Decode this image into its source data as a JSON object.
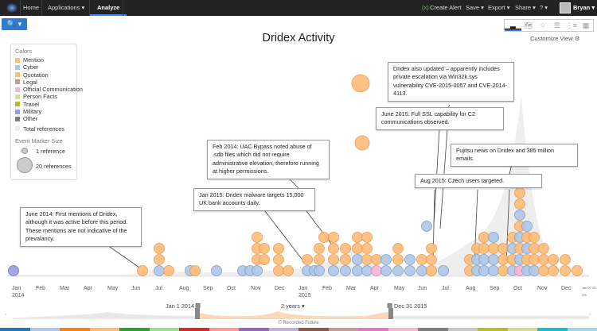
{
  "nav": {
    "home": "Home",
    "applications": "Applications ▾",
    "analyze": "Analyze",
    "create_alert": "Create Alert",
    "save": "Save ▾",
    "export": "Export ▾",
    "share": "Share ▾",
    "help": "? ▾",
    "user": "Bryan ▾"
  },
  "toolbar": {
    "search_label": "🔍 ▾",
    "customize": "Customize View ⚙"
  },
  "title": "Dridex Activity",
  "legend": {
    "colors_heading": "Colors",
    "items": [
      {
        "label": "Mention",
        "color": "#ffbb78"
      },
      {
        "label": "Cyber",
        "color": "#aec7e8"
      },
      {
        "label": "Quotation",
        "color": "#ffbb78"
      },
      {
        "label": "Legal",
        "color": "#c49c94"
      },
      {
        "label": "Official Communication",
        "color": "#f7b6d2"
      },
      {
        "label": "Person Facts",
        "color": "#dbdb8d"
      },
      {
        "label": "Travel",
        "color": "#bcbd22"
      },
      {
        "label": "Military",
        "color": "#9a9ce8"
      },
      {
        "label": "Other",
        "color": "#7f7f7f"
      }
    ],
    "total": "Total references",
    "size_heading": "Event Marker Size",
    "size_small": "1 reference",
    "size_large": "20 references"
  },
  "annotations": [
    {
      "id": "june2014",
      "text": "June 2014: First mentions of Dridex, although it was active before this period. These mentions are not indicative of the prevalancy."
    },
    {
      "id": "feb2014",
      "text": "Feb 2014: UAC Bypass noted abuse of .sdb files which did not require administrative elevation, therefore running at higher permissions."
    },
    {
      "id": "jan2015",
      "text": "Jan 2015: Dridex malware targets 15,000 UK bank accounts daily."
    },
    {
      "id": "update",
      "text": "Dridex also updated – apparently includes private escalation via Win32k.sys vulnerability CVE-2015-0057 and CVE-2014-4113."
    },
    {
      "id": "june2015",
      "text": "June 2015: Full SSL capability for C2 communications observed."
    },
    {
      "id": "fujitsu",
      "text": "Fujitsu news on Dridex and 385 million emails."
    },
    {
      "id": "aug2015",
      "text": "Aug 2015: Czech users targeted."
    }
  ],
  "axis": {
    "months": [
      "Jan\n2014",
      "Feb",
      "Mar",
      "Apr",
      "May",
      "Jun",
      "Jul",
      "Aug",
      "Sep",
      "Oct",
      "Nov",
      "Dec",
      "Jan\n2015",
      "Feb",
      "Mar",
      "Apr",
      "May",
      "Jun",
      "Jul",
      "Aug",
      "Sep",
      "Oct",
      "Nov",
      "Dec"
    ],
    "edge": "Jan 07 20\n2%"
  },
  "range": {
    "start": "Jan 1 2014",
    "span": "2 years ▾",
    "end": "Dec 31 2015"
  },
  "footer": "© Recorded Future",
  "strip_colors": [
    "#1f77b4",
    "#aec7e8",
    "#ff7f0e",
    "#ffbb78",
    "#2ca02c",
    "#98df8a",
    "#d62728",
    "#ff9896",
    "#9467bd",
    "#c5b0d5",
    "#8c564b",
    "#c49c94",
    "#e377c2",
    "#f7b6d2",
    "#7f7f7f",
    "#c7c7c7",
    "#bcbd22",
    "#dbdb8d",
    "#17becf",
    "#9edae5"
  ],
  "chart_data": {
    "type": "scatter",
    "x_unit": "month index from Jan 2014",
    "events": [
      [
        -0.1,
        0,
        "m"
      ],
      [
        5.3,
        0,
        "o"
      ],
      [
        6,
        0,
        "c"
      ],
      [
        6,
        1,
        "o"
      ],
      [
        6,
        2,
        "o"
      ],
      [
        6.4,
        0,
        "o"
      ],
      [
        7.3,
        0,
        "c"
      ],
      [
        7.5,
        0,
        "o"
      ],
      [
        8.4,
        0,
        "c"
      ],
      [
        9.5,
        0,
        "c"
      ],
      [
        9.8,
        0,
        "c"
      ],
      [
        10.1,
        0,
        "c"
      ],
      [
        10.1,
        1,
        "o"
      ],
      [
        10.1,
        2,
        "o"
      ],
      [
        10.1,
        3,
        "o"
      ],
      [
        10.4,
        1,
        "o"
      ],
      [
        10.4,
        2,
        "o"
      ],
      [
        11,
        0,
        "o"
      ],
      [
        11,
        1,
        "o"
      ],
      [
        11,
        2,
        "o"
      ],
      [
        11.4,
        0,
        "o"
      ],
      [
        12.2,
        0,
        "c"
      ],
      [
        12.2,
        1,
        "o"
      ],
      [
        12.5,
        0,
        "c"
      ],
      [
        12.7,
        0,
        "c"
      ],
      [
        12.7,
        1,
        "o"
      ],
      [
        12.7,
        2,
        "o"
      ],
      [
        12.9,
        3,
        "o"
      ],
      [
        13.3,
        0,
        "c"
      ],
      [
        13.3,
        1,
        "o"
      ],
      [
        13.3,
        2,
        "o"
      ],
      [
        13.3,
        3,
        "o"
      ],
      [
        13.8,
        0,
        "c"
      ],
      [
        13.8,
        1,
        "o"
      ],
      [
        13.8,
        2,
        "o"
      ],
      [
        14.3,
        0,
        "c"
      ],
      [
        14.3,
        1,
        "c"
      ],
      [
        14.3,
        2,
        "o"
      ],
      [
        14.3,
        3,
        "o"
      ],
      [
        14.7,
        0,
        "c"
      ],
      [
        14.7,
        1,
        "o"
      ],
      [
        14.7,
        2,
        "o"
      ],
      [
        14.7,
        3,
        "o"
      ],
      [
        15.1,
        0,
        "p"
      ],
      [
        15.1,
        1,
        "o"
      ],
      [
        15.5,
        0,
        "c"
      ],
      [
        15.5,
        1,
        "c"
      ],
      [
        16,
        0,
        "c"
      ],
      [
        16,
        1,
        "o"
      ],
      [
        16,
        2,
        "o"
      ],
      [
        16.5,
        0,
        "c"
      ],
      [
        16.5,
        1,
        "c"
      ],
      [
        17,
        0,
        "c"
      ],
      [
        17,
        1,
        "o"
      ],
      [
        17.2,
        4,
        "c"
      ],
      [
        17.4,
        0,
        "o"
      ],
      [
        17.4,
        1,
        "o"
      ],
      [
        17.4,
        2,
        "o"
      ],
      [
        17.9,
        0,
        "c"
      ],
      [
        19,
        0,
        "o"
      ],
      [
        19,
        1,
        "o"
      ],
      [
        19.3,
        0,
        "c"
      ],
      [
        19.3,
        1,
        "c"
      ],
      [
        19.3,
        2,
        "o"
      ],
      [
        19.6,
        0,
        "c"
      ],
      [
        19.6,
        1,
        "c"
      ],
      [
        19.6,
        2,
        "o"
      ],
      [
        19.6,
        3,
        "o"
      ],
      [
        20,
        0,
        "c"
      ],
      [
        20,
        1,
        "c"
      ],
      [
        20,
        2,
        "o"
      ],
      [
        20,
        3,
        "c"
      ],
      [
        20.4,
        0,
        "o"
      ],
      [
        20.4,
        1,
        "o"
      ],
      [
        20.4,
        2,
        "o"
      ],
      [
        20.8,
        0,
        "c"
      ],
      [
        20.8,
        1,
        "o"
      ],
      [
        20.8,
        2,
        "c"
      ],
      [
        20.8,
        3,
        "o"
      ],
      [
        21.1,
        0,
        "p"
      ],
      [
        21.1,
        1,
        "c"
      ],
      [
        21.1,
        2,
        "o"
      ],
      [
        21.1,
        3,
        "c"
      ],
      [
        21.1,
        4,
        "o"
      ],
      [
        21.1,
        5,
        "c"
      ],
      [
        21.1,
        6,
        "o"
      ],
      [
        21.1,
        7,
        "o"
      ],
      [
        21.4,
        0,
        "c"
      ],
      [
        21.4,
        1,
        "o"
      ],
      [
        21.4,
        2,
        "c"
      ],
      [
        21.4,
        3,
        "o"
      ],
      [
        21.4,
        4,
        "c"
      ],
      [
        21.7,
        0,
        "c"
      ],
      [
        21.7,
        1,
        "o"
      ],
      [
        21.7,
        2,
        "o"
      ],
      [
        21.7,
        3,
        "o"
      ],
      [
        22.1,
        0,
        "o"
      ],
      [
        22.1,
        1,
        "o"
      ],
      [
        22.1,
        2,
        "o"
      ],
      [
        22.5,
        0,
        "o"
      ],
      [
        22.5,
        1,
        "o"
      ],
      [
        23,
        0,
        "o"
      ],
      [
        23,
        1,
        "o"
      ],
      [
        23.5,
        0,
        "o"
      ]
    ],
    "large_events": [
      {
        "x": 14.4,
        "refs": 20,
        "cat": "o"
      },
      {
        "x": 14.5,
        "refs": 14,
        "cat": "o"
      }
    ]
  }
}
